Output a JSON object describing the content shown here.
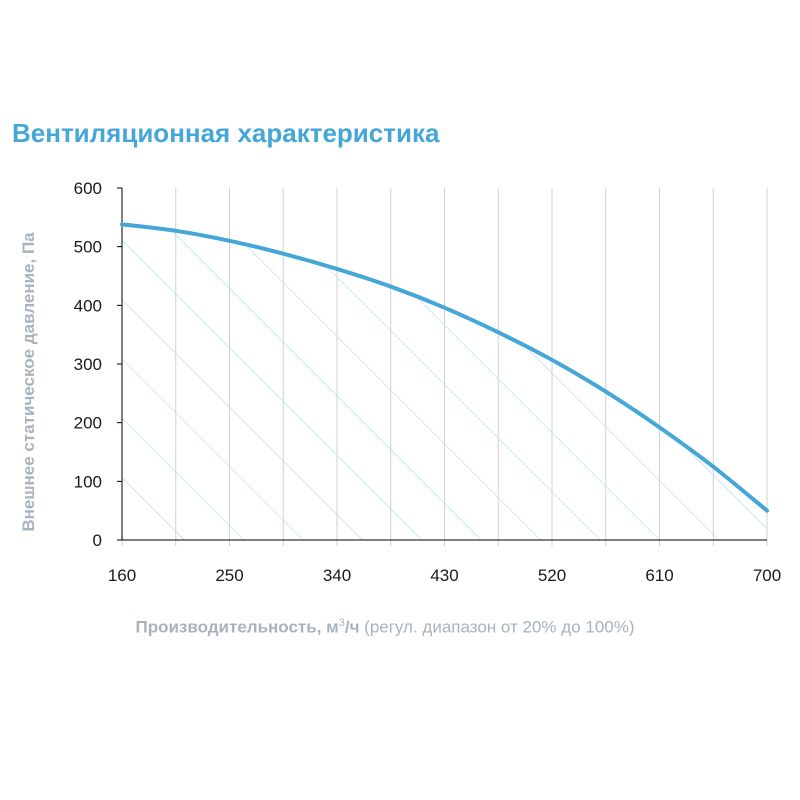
{
  "chart_data": {
    "type": "area",
    "title": "Вентиляционная характеристика",
    "ylabel": "Внешнее статическое давление, Па",
    "xlabel_main": "Производительность, м",
    "xlabel_sup": "3",
    "xlabel_unit": "/ч",
    "xlabel_note": " (регул. диапазон от 20% до 100%)",
    "xlim": [
      160,
      700
    ],
    "ylim": [
      0,
      600
    ],
    "x_ticks": [
      160,
      250,
      340,
      430,
      520,
      610,
      700
    ],
    "y_ticks": [
      0,
      100,
      200,
      300,
      400,
      500,
      600
    ],
    "x_gridlines": [
      160,
      205,
      250,
      295,
      340,
      385,
      430,
      475,
      520,
      565,
      610,
      655,
      700
    ],
    "grid": true,
    "fill": "diagonal-hatch",
    "series": [
      {
        "x": [
          160,
          205,
          250,
          295,
          340,
          385,
          430,
          475,
          520,
          565,
          610,
          655,
          700
        ],
        "values": [
          538,
          527,
          510,
          488,
          462,
          432,
          396,
          354,
          307,
          253,
          192,
          125,
          50
        ]
      }
    ]
  },
  "colors": {
    "title": "#45a6d8",
    "curve": "#45a6d8",
    "hatch": "#bfe1f2",
    "grid": "#d0d0d0",
    "axis_label": "#a9b3bd",
    "tick_label": "#1a1a1a"
  }
}
